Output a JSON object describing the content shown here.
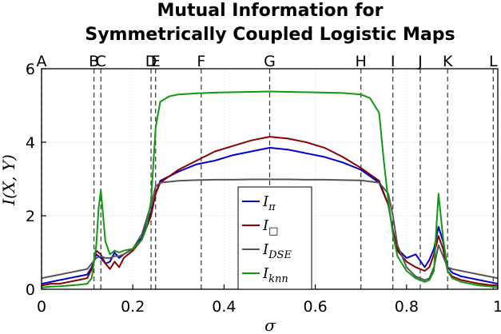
{
  "chart_data": {
    "type": "line",
    "title": [
      "Mutual Information for",
      "Symmetrically Coupled Logistic Maps"
    ],
    "xlabel": "σ",
    "ylabel": "I(X, Y)",
    "xlim": [
      0,
      1
    ],
    "ylim": [
      0,
      6
    ],
    "xticks": [
      0,
      0.2,
      0.4,
      0.6,
      0.8,
      1
    ],
    "xtick_labels": [
      "0",
      "0.2",
      "0.4",
      "0.6",
      "0.8",
      "1"
    ],
    "yticks": [
      0,
      2,
      4,
      6
    ],
    "ytick_labels": [
      "0",
      "2",
      "4",
      "6"
    ],
    "grid": true,
    "legend_position": "center",
    "vertical_markers": [
      {
        "label": "A",
        "x": 0.0
      },
      {
        "label": "B",
        "x": 0.115
      },
      {
        "label": "C",
        "x": 0.13
      },
      {
        "label": "D",
        "x": 0.24
      },
      {
        "label": "E",
        "x": 0.25
      },
      {
        "label": "F",
        "x": 0.35
      },
      {
        "label": "G",
        "x": 0.5
      },
      {
        "label": "H",
        "x": 0.7
      },
      {
        "label": "I",
        "x": 0.77
      },
      {
        "label": "J",
        "x": 0.83
      },
      {
        "label": "K",
        "x": 0.89
      },
      {
        "label": "L",
        "x": 0.99
      }
    ],
    "series": [
      {
        "name_base": "I",
        "name_sub": "π",
        "color": "#0000cc",
        "x": [
          0,
          0.02,
          0.04,
          0.06,
          0.08,
          0.1,
          0.11,
          0.12,
          0.13,
          0.14,
          0.15,
          0.16,
          0.17,
          0.18,
          0.2,
          0.22,
          0.24,
          0.25,
          0.26,
          0.3,
          0.34,
          0.38,
          0.42,
          0.46,
          0.5,
          0.54,
          0.58,
          0.62,
          0.66,
          0.7,
          0.74,
          0.76,
          0.77,
          0.78,
          0.8,
          0.82,
          0.84,
          0.85,
          0.86,
          0.87,
          0.88,
          0.89,
          0.9,
          0.92,
          0.94,
          0.96,
          0.98,
          1.0
        ],
        "y": [
          0.15,
          0.2,
          0.25,
          0.3,
          0.35,
          0.4,
          0.6,
          0.95,
          0.85,
          0.7,
          0.75,
          1.0,
          0.85,
          0.95,
          1.1,
          1.4,
          2.1,
          2.6,
          2.95,
          3.2,
          3.4,
          3.5,
          3.65,
          3.75,
          3.85,
          3.8,
          3.7,
          3.6,
          3.45,
          3.25,
          2.9,
          2.3,
          1.6,
          1.1,
          0.85,
          0.95,
          0.6,
          0.8,
          1.1,
          1.7,
          1.3,
          0.6,
          0.45,
          0.35,
          0.3,
          0.25,
          0.2,
          0.15
        ]
      },
      {
        "name_base": "I",
        "name_sub": "□",
        "color": "#8b0000",
        "x": [
          0,
          0.02,
          0.04,
          0.06,
          0.08,
          0.1,
          0.11,
          0.12,
          0.13,
          0.14,
          0.15,
          0.16,
          0.17,
          0.18,
          0.2,
          0.22,
          0.24,
          0.25,
          0.26,
          0.3,
          0.34,
          0.38,
          0.42,
          0.46,
          0.5,
          0.54,
          0.58,
          0.62,
          0.66,
          0.7,
          0.74,
          0.76,
          0.77,
          0.78,
          0.8,
          0.82,
          0.84,
          0.85,
          0.86,
          0.87,
          0.88,
          0.89,
          0.9,
          0.92,
          0.94,
          0.96,
          0.98,
          1.0
        ],
        "y": [
          0.1,
          0.15,
          0.15,
          0.2,
          0.25,
          0.3,
          0.55,
          1.05,
          0.95,
          0.7,
          0.55,
          0.75,
          0.6,
          0.85,
          1.05,
          1.35,
          2.0,
          2.6,
          2.9,
          3.25,
          3.5,
          3.75,
          3.9,
          4.05,
          4.15,
          4.1,
          4.0,
          3.85,
          3.6,
          3.3,
          2.95,
          2.3,
          1.6,
          1.05,
          0.75,
          0.6,
          0.5,
          0.6,
          0.95,
          1.45,
          1.1,
          0.5,
          0.35,
          0.25,
          0.2,
          0.15,
          0.12,
          0.1
        ]
      },
      {
        "name_base": "I",
        "name_sub": "DSE",
        "color": "#555555",
        "x": [
          0,
          0.02,
          0.04,
          0.06,
          0.08,
          0.1,
          0.11,
          0.12,
          0.13,
          0.14,
          0.15,
          0.16,
          0.17,
          0.18,
          0.2,
          0.22,
          0.24,
          0.25,
          0.26,
          0.3,
          0.34,
          0.38,
          0.42,
          0.46,
          0.5,
          0.54,
          0.58,
          0.62,
          0.66,
          0.7,
          0.74,
          0.76,
          0.77,
          0.78,
          0.8,
          0.82,
          0.84,
          0.85,
          0.86,
          0.87,
          0.88,
          0.89,
          0.9,
          0.92,
          0.94,
          0.96,
          0.98,
          1.0
        ],
        "y": [
          0.3,
          0.35,
          0.4,
          0.45,
          0.5,
          0.55,
          0.7,
          0.85,
          0.9,
          0.85,
          0.85,
          0.9,
          0.9,
          0.95,
          1.1,
          1.5,
          2.3,
          2.8,
          2.9,
          2.95,
          2.97,
          2.98,
          2.98,
          2.99,
          2.99,
          2.99,
          2.98,
          2.98,
          2.97,
          2.96,
          2.9,
          2.6,
          2.0,
          1.2,
          0.6,
          0.35,
          0.25,
          0.3,
          0.6,
          1.2,
          0.9,
          0.6,
          0.55,
          0.5,
          0.45,
          0.4,
          0.35,
          0.3
        ]
      },
      {
        "name_base": "I",
        "name_sub": "knn",
        "color": "#119911",
        "x": [
          0,
          0.02,
          0.04,
          0.06,
          0.08,
          0.1,
          0.11,
          0.12,
          0.125,
          0.13,
          0.14,
          0.15,
          0.16,
          0.17,
          0.18,
          0.2,
          0.22,
          0.23,
          0.24,
          0.25,
          0.26,
          0.28,
          0.3,
          0.34,
          0.38,
          0.42,
          0.46,
          0.5,
          0.54,
          0.58,
          0.62,
          0.66,
          0.7,
          0.72,
          0.74,
          0.75,
          0.76,
          0.77,
          0.78,
          0.8,
          0.82,
          0.84,
          0.85,
          0.86,
          0.865,
          0.87,
          0.88,
          0.89,
          0.9,
          0.92,
          0.94,
          0.96,
          0.98,
          1.0
        ],
        "y": [
          0.05,
          0.07,
          0.08,
          0.1,
          0.12,
          0.15,
          0.3,
          1.2,
          2.2,
          2.7,
          1.3,
          0.95,
          1.05,
          1.0,
          1.05,
          1.1,
          1.35,
          1.7,
          2.4,
          4.4,
          5.1,
          5.25,
          5.3,
          5.33,
          5.35,
          5.36,
          5.37,
          5.38,
          5.37,
          5.36,
          5.35,
          5.34,
          5.3,
          5.2,
          4.8,
          3.5,
          2.4,
          1.5,
          0.9,
          0.5,
          0.3,
          0.2,
          0.25,
          0.5,
          1.6,
          2.6,
          1.4,
          0.5,
          0.3,
          0.2,
          0.15,
          0.1,
          0.08,
          0.05
        ]
      }
    ]
  }
}
